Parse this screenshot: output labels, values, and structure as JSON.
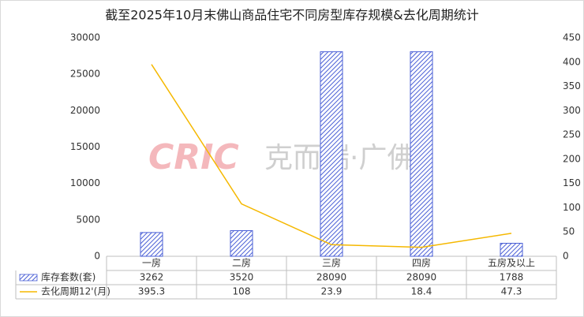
{
  "chart_data": {
    "type": "bar_line_table",
    "title": "截至2025年10月末佛山商品住宅不同房型库存规模&去化周期统计",
    "watermark": {
      "logo": "CRIC",
      "text": "克而瑞·广佛"
    },
    "categories": [
      "一房",
      "二房",
      "三房",
      "四房",
      "五房及以上"
    ],
    "series": [
      {
        "name": "库存套数(套)",
        "type": "bar",
        "color": "#4a5fd6",
        "values": [
          3262,
          3520,
          28090,
          28090,
          1788
        ]
      },
      {
        "name": "去化周期12'(月)",
        "type": "line",
        "color": "#f5b800",
        "axis": "y2",
        "values": [
          395.3,
          108,
          23.9,
          18.4,
          47.3
        ]
      }
    ],
    "ylim": [
      0,
      30000
    ],
    "yticks": [
      0,
      5000,
      10000,
      15000,
      20000,
      25000,
      30000
    ],
    "y2lim": [
      0,
      450
    ],
    "y2ticks": [
      0,
      50,
      100,
      150,
      200,
      250,
      300,
      350,
      400,
      450
    ],
    "grid": false
  }
}
